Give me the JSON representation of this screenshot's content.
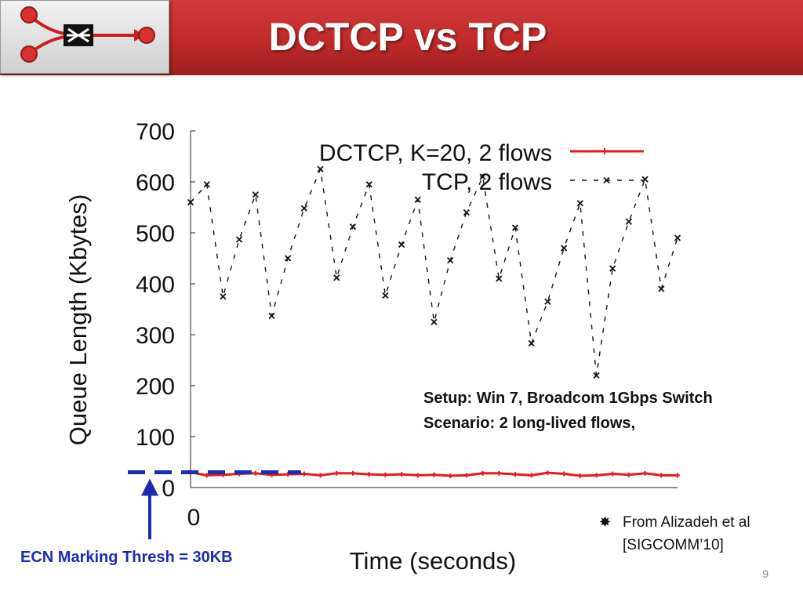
{
  "slide": {
    "title": "DCTCP vs TCP",
    "setup_line1": "Setup: Win 7, Broadcom 1Gbps Switch",
    "setup_line2": "Scenario: 2 long-lived flows,",
    "source_line1": "From Alizadeh et al",
    "source_line2": "[SIGCOMM’10]",
    "ecn_label": "ECN Marking Thresh = 30KB",
    "page_number": "9"
  },
  "chart_data": {
    "type": "line",
    "title": "",
    "xlabel": "Time (seconds)",
    "ylabel": "Queue Length (Kbytes)",
    "ylim": [
      0,
      700
    ],
    "yticks": [
      "0",
      "100",
      "200",
      "300",
      "400",
      "500",
      "600",
      "700"
    ],
    "xticks": [
      "0"
    ],
    "grid": false,
    "legend_position": "top-right",
    "series": [
      {
        "name": "DCTCP, K=20, 2 flows",
        "color": "#e8191c",
        "style": "solid-with-plus-markers",
        "x": [
          0,
          1,
          2,
          3,
          4,
          5,
          6,
          7,
          8,
          9,
          10,
          11,
          12,
          13,
          14,
          15,
          16,
          17,
          18,
          19,
          20,
          21,
          22,
          23,
          24,
          25,
          26,
          27,
          28,
          29,
          30
        ],
        "values": [
          30,
          24,
          25,
          27,
          28,
          25,
          26,
          27,
          24,
          28,
          28,
          26,
          25,
          26,
          24,
          25,
          23,
          24,
          28,
          28,
          26,
          24,
          29,
          27,
          23,
          24,
          27,
          25,
          28,
          24,
          24
        ]
      },
      {
        "name": "TCP, 2 flows",
        "color": "#111111",
        "style": "dashed-with-x-markers",
        "x": [
          0,
          1,
          2,
          3,
          4,
          5,
          6,
          7,
          8,
          9,
          10,
          11,
          12,
          13,
          14,
          15,
          16,
          17,
          18,
          19,
          20,
          21,
          22,
          23,
          24,
          25,
          26,
          27,
          28,
          29,
          30
        ],
        "values": [
          560,
          595,
          375,
          487,
          575,
          337,
          450,
          548,
          625,
          412,
          512,
          595,
          377,
          477,
          565,
          325,
          446,
          540,
          610,
          410,
          510,
          283,
          365,
          470,
          558,
          220,
          430,
          522,
          605,
          390,
          490
        ]
      }
    ],
    "annotations": {
      "threshold_line": {
        "label": "ECN Marking Thresh = 30KB",
        "value": 30,
        "color": "#1d2bb3",
        "style": "thick-dashed"
      }
    }
  }
}
